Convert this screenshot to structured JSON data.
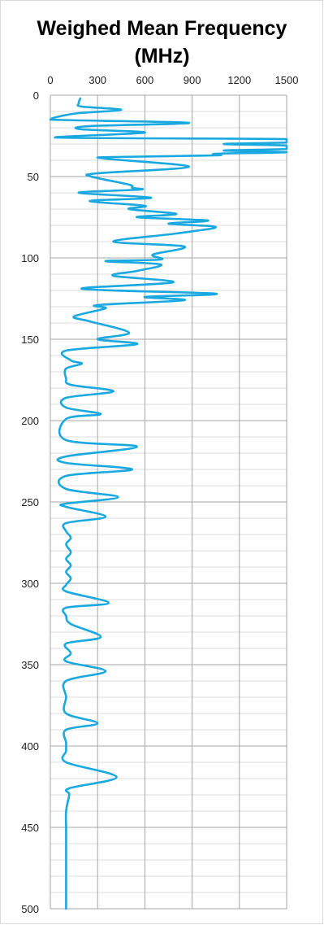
{
  "chart_data": {
    "type": "line",
    "title_lines": [
      "Weighed Mean Frequency",
      "(MHz)"
    ],
    "xlabel": "",
    "ylabel": "",
    "xlim": [
      0,
      1500
    ],
    "ylim": [
      0,
      500
    ],
    "y_inverted": true,
    "x_axis_position": "top",
    "x_ticks": [
      0,
      300,
      600,
      900,
      1200,
      1500
    ],
    "y_ticks": [
      0,
      50,
      100,
      150,
      200,
      250,
      300,
      350,
      400,
      450,
      500
    ],
    "grid": "major-and-minor",
    "line_color": "#19a9e0",
    "series": [
      {
        "points": [
          [
            190,
            2
          ],
          [
            180,
            5
          ],
          [
            200,
            7
          ],
          [
            450,
            9
          ],
          [
            180,
            11
          ],
          [
            60,
            13
          ],
          [
            0,
            15
          ],
          [
            880,
            17
          ],
          [
            250,
            19
          ],
          [
            200,
            21
          ],
          [
            600,
            23
          ],
          [
            30,
            26
          ],
          [
            1500,
            27
          ],
          [
            1500,
            29
          ],
          [
            1100,
            30
          ],
          [
            1500,
            31
          ],
          [
            1500,
            33
          ],
          [
            1100,
            34
          ],
          [
            1500,
            35
          ],
          [
            1050,
            36
          ],
          [
            1050,
            37
          ],
          [
            400,
            38
          ],
          [
            350,
            39
          ],
          [
            880,
            44
          ],
          [
            300,
            48
          ],
          [
            260,
            50
          ],
          [
            500,
            55
          ],
          [
            520,
            57
          ],
          [
            570,
            58
          ],
          [
            180,
            60
          ],
          [
            640,
            63
          ],
          [
            250,
            65
          ],
          [
            600,
            68
          ],
          [
            500,
            70
          ],
          [
            800,
            73
          ],
          [
            550,
            75
          ],
          [
            1000,
            77
          ],
          [
            750,
            79
          ],
          [
            1050,
            81
          ],
          [
            800,
            85
          ],
          [
            400,
            90
          ],
          [
            850,
            93
          ],
          [
            650,
            98
          ],
          [
            700,
            101
          ],
          [
            350,
            102
          ],
          [
            700,
            104
          ],
          [
            550,
            108
          ],
          [
            400,
            111
          ],
          [
            780,
            115
          ],
          [
            200,
            119
          ],
          [
            1050,
            122
          ],
          [
            600,
            124
          ],
          [
            850,
            126
          ],
          [
            300,
            129
          ],
          [
            350,
            131
          ],
          [
            150,
            136
          ],
          [
            250,
            139
          ],
          [
            500,
            146
          ],
          [
            300,
            150
          ],
          [
            550,
            153
          ],
          [
            100,
            157
          ],
          [
            130,
            163
          ],
          [
            200,
            165
          ],
          [
            100,
            168
          ],
          [
            100,
            174
          ],
          [
            130,
            178
          ],
          [
            400,
            182
          ],
          [
            100,
            186
          ],
          [
            100,
            192
          ],
          [
            320,
            196
          ],
          [
            100,
            199
          ],
          [
            100,
            212
          ],
          [
            550,
            216
          ],
          [
            100,
            222
          ],
          [
            100,
            226
          ],
          [
            520,
            230
          ],
          [
            100,
            234
          ],
          [
            100,
            242
          ],
          [
            430,
            247
          ],
          [
            100,
            251
          ],
          [
            100,
            253
          ],
          [
            350,
            259
          ],
          [
            100,
            263
          ],
          [
            100,
            268
          ],
          [
            130,
            272
          ],
          [
            100,
            276
          ],
          [
            130,
            281
          ],
          [
            100,
            285
          ],
          [
            130,
            289
          ],
          [
            100,
            293
          ],
          [
            130,
            297
          ],
          [
            100,
            301
          ],
          [
            100,
            305
          ],
          [
            370,
            312
          ],
          [
            100,
            315
          ],
          [
            100,
            320
          ],
          [
            130,
            325
          ],
          [
            320,
            333
          ],
          [
            100,
            337
          ],
          [
            130,
            343
          ],
          [
            100,
            348
          ],
          [
            350,
            354
          ],
          [
            100,
            360
          ],
          [
            100,
            370
          ],
          [
            100,
            380
          ],
          [
            300,
            386
          ],
          [
            100,
            390
          ],
          [
            100,
            398
          ],
          [
            100,
            403
          ],
          [
            100,
            410
          ],
          [
            420,
            419
          ],
          [
            120,
            426
          ],
          [
            120,
            430
          ],
          [
            100,
            440
          ],
          [
            100,
            450
          ],
          [
            100,
            460
          ],
          [
            100,
            470
          ],
          [
            100,
            480
          ],
          [
            100,
            490
          ],
          [
            100,
            500
          ]
        ]
      }
    ]
  }
}
